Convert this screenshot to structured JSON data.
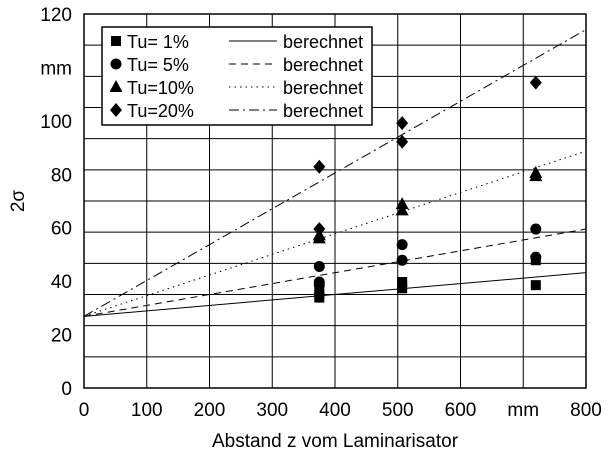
{
  "chart_data": {
    "type": "scatter",
    "title": "",
    "xlabel": "Abstand z vom Laminarisator",
    "ylabel": "2σ",
    "xlim": [
      0,
      800
    ],
    "ylim": [
      0,
      120
    ],
    "xticks": [
      "0",
      "100",
      "200",
      "300",
      "400",
      "500",
      "600",
      "mm",
      "800"
    ],
    "yticks": [
      "0",
      "20",
      "40",
      "60",
      "80",
      "100",
      "mm",
      "120"
    ],
    "grid": true,
    "minor_grid_y_step": 10,
    "legend_position": "top-left",
    "series": [
      {
        "name": "Tu=  1%",
        "marker": "square",
        "points": [
          [
            375,
            29
          ],
          [
            375,
            30
          ],
          [
            375,
            31
          ],
          [
            507,
            32
          ],
          [
            507,
            33
          ],
          [
            507,
            34
          ],
          [
            720,
            33
          ],
          [
            720,
            41
          ]
        ],
        "fit_label": "berechnet",
        "fit_style": "solid",
        "fit_line": [
          [
            0,
            23
          ],
          [
            800,
            37
          ]
        ]
      },
      {
        "name": "Tu=  5%",
        "marker": "circle",
        "points": [
          [
            375,
            33
          ],
          [
            375,
            34
          ],
          [
            375,
            39
          ],
          [
            507,
            41
          ],
          [
            507,
            46
          ],
          [
            720,
            42
          ],
          [
            720,
            51
          ]
        ],
        "fit_label": "berechnet",
        "fit_style": "dashed",
        "fit_line": [
          [
            0,
            23
          ],
          [
            800,
            51
          ]
        ]
      },
      {
        "name": "Tu=10%",
        "marker": "triangle",
        "points": [
          [
            375,
            48
          ],
          [
            375,
            49
          ],
          [
            507,
            57
          ],
          [
            507,
            59
          ],
          [
            720,
            68
          ],
          [
            720,
            69
          ]
        ],
        "fit_label": "berechnet",
        "fit_style": "dotted",
        "fit_line": [
          [
            0,
            23
          ],
          [
            800,
            76
          ]
        ]
      },
      {
        "name": "Tu=20%",
        "marker": "diamond",
        "points": [
          [
            375,
            51
          ],
          [
            375,
            71
          ],
          [
            507,
            79
          ],
          [
            507,
            85
          ],
          [
            720,
            98
          ]
        ],
        "fit_label": "berechnet",
        "fit_style": "dashdot",
        "fit_line": [
          [
            0,
            23
          ],
          [
            800,
            115
          ]
        ]
      }
    ]
  }
}
